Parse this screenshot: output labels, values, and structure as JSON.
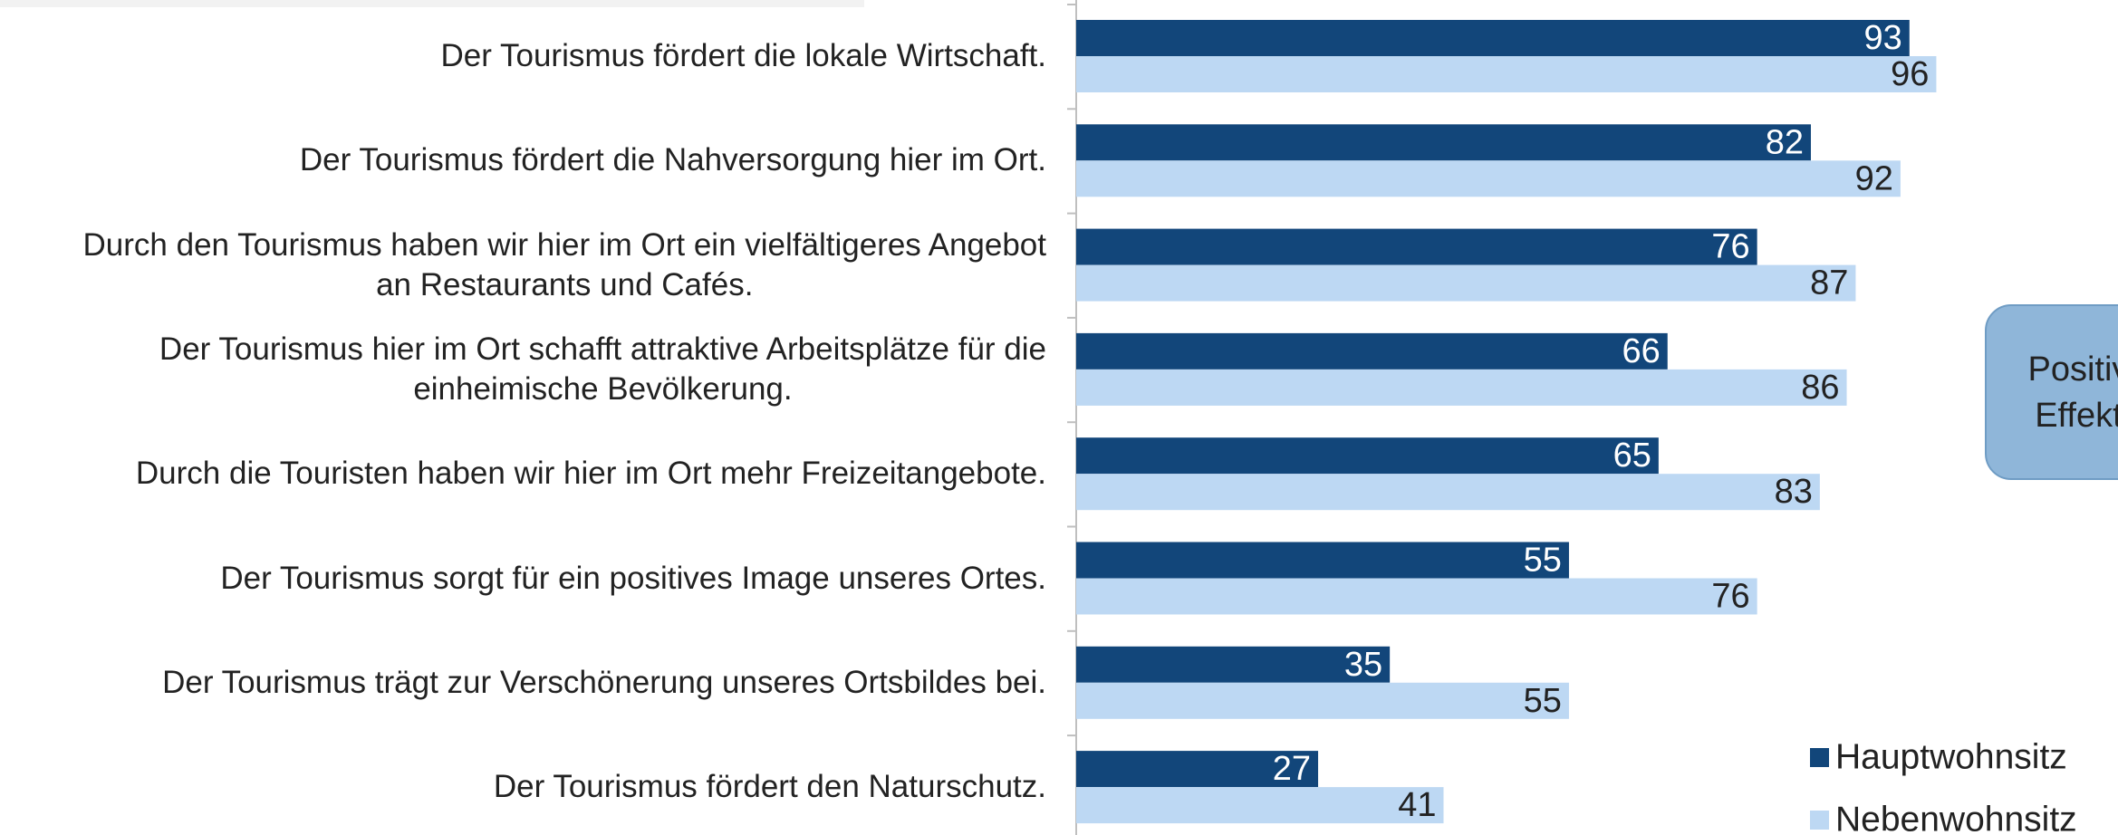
{
  "chart_data": {
    "type": "barh",
    "categories": [
      "Der Tourismus fördert die lokale Wirtschaft.",
      "Der Tourismus fördert die Nahversorgung hier im Ort.",
      "Durch den Tourismus haben wir hier im Ort ein vielfältigeres Angebot\nan Restaurants und Cafés.",
      "Der Tourismus hier im Ort schafft attraktive Arbeitsplätze für die\neinheimische Bevölkerung.",
      "Durch die Touristen haben wir hier im Ort mehr Freizeitangebote.",
      "Der Tourismus sorgt für ein positives Image unseres Ortes.",
      "Der Tourismus trägt zur Verschönerung unseres Ortsbildes bei.",
      "Der Tourismus fördert den Naturschutz."
    ],
    "series": [
      {
        "name": "Hauptwohnsitz",
        "color": "#12467a",
        "values": [
          93,
          82,
          76,
          66,
          65,
          55,
          35,
          27
        ]
      },
      {
        "name": "Nebenwohnsitz",
        "color": "#bdd8f3",
        "values": [
          96,
          92,
          87,
          86,
          83,
          76,
          55,
          41
        ]
      }
    ],
    "xlim": [
      0,
      100
    ],
    "legend": "lower right"
  },
  "annotation": [
    "Positive",
    "Effekte"
  ]
}
